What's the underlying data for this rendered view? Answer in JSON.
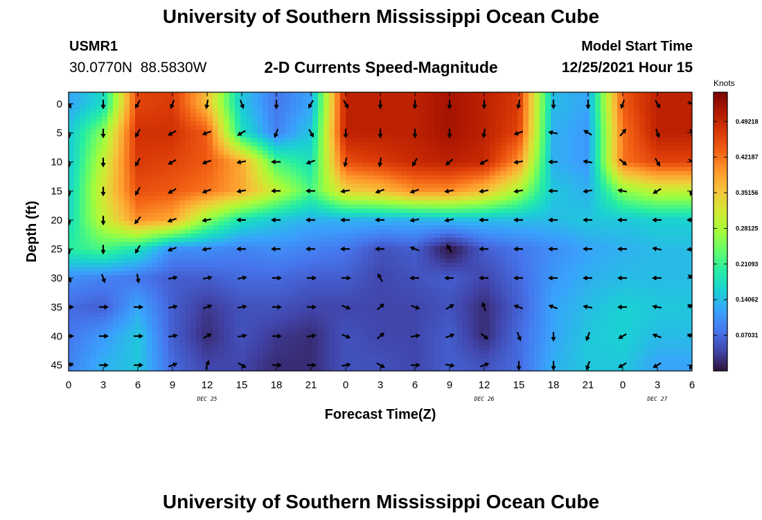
{
  "header": {
    "title": "University of Southern Mississippi Ocean Cube",
    "station_id": "USMR1",
    "station_coords": "30.0770N  88.5830W",
    "chart_title": "2-D Currents Speed-Magnitude",
    "model_start_label": "Model Start Time",
    "model_start_value": "12/25/2021 Hour 15"
  },
  "footer": {
    "title": "University of Southern Mississippi Ocean Cube"
  },
  "chart_data": {
    "type": "heatmap",
    "title": "2-D Currents Speed-Magnitude",
    "xlabel": "Forecast Time(Z)",
    "ylabel": "Depth (ft)",
    "x_ticks": [
      "0",
      "3",
      "6",
      "9",
      "12",
      "15",
      "18",
      "21",
      "0",
      "3",
      "6",
      "9",
      "12",
      "15",
      "18",
      "21",
      "0",
      "3",
      "6"
    ],
    "x_day_labels": [
      {
        "label": "DEC 25",
        "at_tick": 4
      },
      {
        "label": "DEC 26",
        "at_tick": 12
      },
      {
        "label": "DEC 27",
        "at_tick": 17
      }
    ],
    "y_ticks": [
      "0",
      "5",
      "10",
      "15",
      "20",
      "25",
      "30",
      "35",
      "40",
      "45"
    ],
    "ylim": [
      0,
      48
    ],
    "colorbar": {
      "unit": "Knots",
      "ticks": [
        "0.49218",
        "0.42187",
        "0.35156",
        "0.28125",
        "0.21093",
        "0.14062",
        "0.07031"
      ],
      "vmin": 0,
      "vmax": 0.55
    },
    "colormap": [
      "#30123b",
      "#4145ab",
      "#4675ed",
      "#39a2fc",
      "#1bcfd4",
      "#24eca6",
      "#61fc6c",
      "#a4fc3b",
      "#d1e834",
      "#f3c63a",
      "#fe9b2d",
      "#f36315",
      "#d93806",
      "#b11901",
      "#7a0403"
    ],
    "speed_grid_note": "rows = depth 0..45 ft step 5, cols = forecast hours 0..51 step 3 (values in knots)",
    "speed_grid": [
      [
        0.12,
        0.17,
        0.46,
        0.47,
        0.36,
        0.15,
        0.08,
        0.12,
        0.5,
        0.5,
        0.5,
        0.52,
        0.5,
        0.47,
        0.14,
        0.12,
        0.44,
        0.5
      ],
      [
        0.15,
        0.26,
        0.48,
        0.48,
        0.44,
        0.18,
        0.09,
        0.15,
        0.5,
        0.5,
        0.5,
        0.52,
        0.5,
        0.46,
        0.13,
        0.11,
        0.42,
        0.5
      ],
      [
        0.15,
        0.3,
        0.47,
        0.46,
        0.44,
        0.38,
        0.22,
        0.18,
        0.45,
        0.47,
        0.49,
        0.5,
        0.49,
        0.4,
        0.13,
        0.11,
        0.42,
        0.46
      ],
      [
        0.16,
        0.32,
        0.45,
        0.44,
        0.42,
        0.38,
        0.3,
        0.22,
        0.34,
        0.36,
        0.4,
        0.4,
        0.36,
        0.28,
        0.15,
        0.13,
        0.26,
        0.3
      ],
      [
        0.17,
        0.3,
        0.4,
        0.38,
        0.26,
        0.18,
        0.15,
        0.13,
        0.13,
        0.13,
        0.13,
        0.14,
        0.14,
        0.14,
        0.14,
        0.15,
        0.15,
        0.16
      ],
      [
        0.2,
        0.22,
        0.18,
        0.1,
        0.1,
        0.09,
        0.1,
        0.09,
        0.08,
        0.05,
        0.06,
        0.0,
        0.06,
        0.08,
        0.1,
        0.12,
        0.13,
        0.14
      ],
      [
        0.1,
        0.09,
        0.08,
        0.06,
        0.06,
        0.07,
        0.07,
        0.06,
        0.06,
        0.04,
        0.05,
        0.06,
        0.04,
        0.07,
        0.11,
        0.13,
        0.14,
        0.14
      ],
      [
        0.07,
        0.06,
        0.12,
        0.06,
        0.03,
        0.05,
        0.05,
        0.04,
        0.04,
        0.04,
        0.04,
        0.05,
        0.02,
        0.06,
        0.12,
        0.14,
        0.16,
        0.15
      ],
      [
        0.08,
        0.11,
        0.15,
        0.06,
        0.02,
        0.05,
        0.03,
        0.02,
        0.05,
        0.04,
        0.04,
        0.06,
        0.02,
        0.07,
        0.12,
        0.15,
        0.16,
        0.14
      ],
      [
        0.09,
        0.13,
        0.15,
        0.07,
        0.04,
        0.04,
        0.02,
        0.02,
        0.05,
        0.05,
        0.04,
        0.06,
        0.05,
        0.07,
        0.13,
        0.15,
        0.15,
        0.12
      ]
    ],
    "arrow_grid_note": "flow direction in degrees clockwise from north (toward), rows = depth 0..45 ft step 5, cols = forecast hours 0..54 step 3",
    "arrow_direction_deg": [
      [
        150,
        180,
        210,
        200,
        190,
        160,
        180,
        210,
        150,
        180,
        180,
        180,
        180,
        190,
        180,
        180,
        200,
        150,
        120
      ],
      [
        170,
        180,
        210,
        240,
        250,
        240,
        200,
        150,
        180,
        180,
        180,
        180,
        190,
        250,
        280,
        300,
        40,
        160,
        150
      ],
      [
        170,
        180,
        210,
        240,
        250,
        260,
        270,
        250,
        190,
        190,
        210,
        230,
        240,
        260,
        270,
        280,
        130,
        150,
        130
      ],
      [
        170,
        180,
        210,
        240,
        250,
        260,
        270,
        270,
        260,
        250,
        250,
        260,
        260,
        260,
        270,
        260,
        280,
        240,
        200
      ],
      [
        170,
        180,
        220,
        250,
        260,
        270,
        270,
        270,
        270,
        270,
        260,
        260,
        270,
        270,
        270,
        270,
        270,
        270,
        270
      ],
      [
        170,
        180,
        210,
        250,
        260,
        270,
        270,
        270,
        270,
        270,
        290,
        330,
        270,
        270,
        270,
        270,
        270,
        280,
        260
      ],
      [
        150,
        160,
        170,
        80,
        80,
        80,
        90,
        90,
        90,
        330,
        270,
        270,
        270,
        270,
        270,
        270,
        270,
        270,
        310
      ],
      [
        90,
        90,
        90,
        80,
        70,
        80,
        90,
        90,
        110,
        50,
        110,
        60,
        340,
        290,
        290,
        280,
        270,
        280,
        300
      ],
      [
        90,
        90,
        90,
        80,
        60,
        80,
        90,
        80,
        110,
        50,
        80,
        70,
        130,
        160,
        180,
        200,
        240,
        290,
        290
      ],
      [
        70,
        90,
        90,
        70,
        20,
        120,
        90,
        90,
        80,
        120,
        90,
        100,
        70,
        180,
        180,
        200,
        240,
        240,
        210
      ]
    ]
  }
}
